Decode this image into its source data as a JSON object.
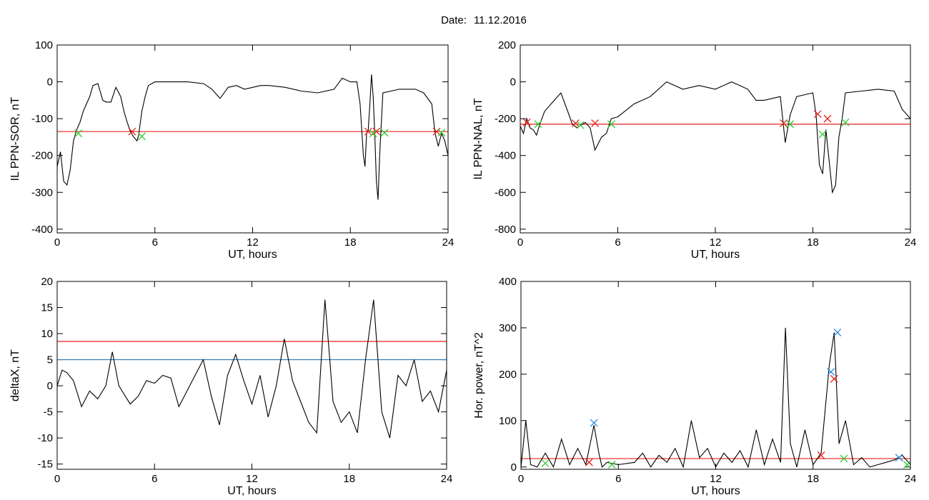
{
  "title_prefix": "Date:",
  "date": "11.12.2016",
  "colors": {
    "trace": "#000000",
    "highlight": "#1f5fc0",
    "threshold_red": "#e8201a",
    "threshold_blue": "#2a73b8",
    "marker_red": "#e8201a",
    "marker_green": "#33cc33",
    "marker_blue": "#2a8ae0"
  },
  "chart_data": [
    {
      "type": "line",
      "id": "ppn-sor",
      "xlabel": "UT, hours",
      "ylabel": "IL PPN-SOR, nT",
      "xlim": [
        0,
        24
      ],
      "ylim": [
        -410,
        100
      ],
      "xticks": [
        0,
        6,
        12,
        18,
        24
      ],
      "yticks": [
        -400,
        -300,
        -200,
        -100,
        0,
        100
      ],
      "threshold": {
        "value": -135,
        "color": "red"
      },
      "series": [
        {
          "x": [
            0,
            0.2,
            0.4,
            0.6,
            0.8,
            1.0,
            1.2,
            1.4,
            1.6,
            1.8,
            2.0,
            2.2,
            2.5,
            2.8,
            3.0,
            3.3,
            3.6,
            3.9,
            4.1,
            4.3,
            4.5,
            4.7,
            4.9,
            5.0,
            5.2,
            5.4,
            5.6,
            6.0,
            7,
            8,
            9,
            9.5,
            10,
            10.5,
            11,
            11.5,
            12,
            12.5,
            13,
            14,
            15,
            16,
            17,
            17.5,
            18,
            18.4,
            18.6,
            18.8,
            18.9,
            19.0,
            19.1,
            19.2,
            19.3,
            19.4,
            19.5,
            19.6,
            19.7,
            19.8,
            20.0,
            20.5,
            21,
            22,
            22.5,
            23.0,
            23.2,
            23.4,
            23.6,
            23.8,
            24
          ],
          "y": [
            -230,
            -190,
            -270,
            -280,
            -240,
            -160,
            -130,
            -110,
            -80,
            -60,
            -40,
            -10,
            -5,
            -50,
            -55,
            -55,
            -15,
            -40,
            -80,
            -110,
            -135,
            -150,
            -160,
            -145,
            -80,
            -40,
            -10,
            0,
            0,
            0,
            -5,
            -20,
            -45,
            -15,
            -10,
            -20,
            -15,
            -10,
            -10,
            -15,
            -25,
            -30,
            -20,
            10,
            0,
            0,
            -60,
            -200,
            -230,
            -140,
            -130,
            -60,
            20,
            -40,
            -140,
            -270,
            -320,
            -200,
            -30,
            -25,
            -20,
            -20,
            -30,
            -60,
            -140,
            -175,
            -140,
            -160,
            -200
          ]
        }
      ],
      "markers": [
        {
          "x": 4.6,
          "y": -135,
          "color": "red"
        },
        {
          "x": 19.1,
          "y": -135,
          "color": "red"
        },
        {
          "x": 19.6,
          "y": -135,
          "color": "red"
        },
        {
          "x": 23.3,
          "y": -135,
          "color": "red"
        },
        {
          "x": 1.3,
          "y": -140,
          "color": "green"
        },
        {
          "x": 5.2,
          "y": -148,
          "color": "green"
        },
        {
          "x": 19.4,
          "y": -140,
          "color": "green"
        },
        {
          "x": 20.1,
          "y": -138,
          "color": "green"
        },
        {
          "x": 23.6,
          "y": -138,
          "color": "green"
        }
      ]
    },
    {
      "type": "line",
      "id": "ppn-nal",
      "xlabel": "UT, hours",
      "ylabel": "IL PPN-NAL, nT",
      "xlim": [
        0,
        24
      ],
      "ylim": [
        -820,
        200
      ],
      "xticks": [
        0,
        6,
        12,
        18,
        24
      ],
      "yticks": [
        -800,
        -600,
        -400,
        -200,
        0,
        200
      ],
      "threshold": {
        "value": -230,
        "color": "red"
      },
      "series": [
        {
          "x": [
            0,
            0.2,
            0.4,
            0.6,
            0.8,
            1.0,
            1.2,
            1.5,
            2,
            2.5,
            3.0,
            3.2,
            3.5,
            4,
            4.3,
            4.6,
            5.0,
            5.3,
            5.6,
            6,
            7,
            8,
            9,
            10,
            11,
            12,
            13,
            14,
            14.5,
            15,
            16,
            16.3,
            16.6,
            17,
            17.5,
            18.0,
            18.2,
            18.4,
            18.6,
            18.8,
            19.0,
            19.2,
            19.4,
            19.6,
            19.8,
            20,
            21,
            22,
            23,
            23.5,
            24
          ],
          "y": [
            -240,
            -280,
            -200,
            -250,
            -260,
            -290,
            -230,
            -160,
            -110,
            -60,
            -180,
            -230,
            -250,
            -220,
            -250,
            -370,
            -300,
            -280,
            -200,
            -190,
            -120,
            -80,
            0,
            -40,
            -20,
            -40,
            0,
            -40,
            -100,
            -100,
            -80,
            -330,
            -180,
            -80,
            -70,
            -60,
            -180,
            -450,
            -500,
            -260,
            -430,
            -600,
            -560,
            -300,
            -200,
            -60,
            -50,
            -40,
            -50,
            -150,
            -200
          ]
        }
      ],
      "markers": [
        {
          "x": 0.4,
          "y": -220,
          "color": "red"
        },
        {
          "x": 3.4,
          "y": -225,
          "color": "red"
        },
        {
          "x": 4.6,
          "y": -225,
          "color": "red"
        },
        {
          "x": 16.2,
          "y": -225,
          "color": "red"
        },
        {
          "x": 18.3,
          "y": -175,
          "color": "red"
        },
        {
          "x": 18.9,
          "y": -200,
          "color": "red"
        },
        {
          "x": 1.1,
          "y": -230,
          "color": "green"
        },
        {
          "x": 3.7,
          "y": -235,
          "color": "green"
        },
        {
          "x": 5.6,
          "y": -230,
          "color": "green"
        },
        {
          "x": 16.6,
          "y": -230,
          "color": "green"
        },
        {
          "x": 18.6,
          "y": -285,
          "color": "green"
        },
        {
          "x": 20.0,
          "y": -220,
          "color": "green"
        }
      ]
    },
    {
      "type": "line",
      "id": "deltax",
      "xlabel": "UT, hours",
      "ylabel": "deltaX, nT",
      "xlim": [
        0,
        24
      ],
      "ylim": [
        -16,
        20
      ],
      "xticks": [
        0,
        6,
        12,
        18,
        24
      ],
      "yticks": [
        -15,
        -10,
        -5,
        0,
        5,
        10,
        15,
        20
      ],
      "thresholds": [
        {
          "value": 8.5,
          "color": "red"
        },
        {
          "value": 5.0,
          "color": "blue"
        }
      ],
      "series": [
        {
          "x": [
            0,
            0.3,
            0.6,
            1.0,
            1.5,
            2,
            2.5,
            3,
            3.4,
            3.8,
            4.5,
            5,
            5.5,
            6,
            6.5,
            7,
            7.5,
            8,
            8.5,
            9,
            9.5,
            10,
            10.5,
            11,
            11.5,
            12,
            12.5,
            13,
            13.5,
            14,
            14.5,
            15,
            15.5,
            16,
            16.5,
            16.8,
            17,
            17.5,
            18,
            18.5,
            19,
            19.5,
            20,
            20.5,
            21,
            21.5,
            22,
            22.5,
            23,
            23.5,
            24
          ],
          "y": [
            0,
            3,
            2.5,
            1,
            -4,
            -1,
            -2.5,
            0,
            6.5,
            0,
            -3.5,
            -2,
            1,
            0.5,
            2,
            1.5,
            -4,
            -1,
            2,
            5,
            -2,
            -7.5,
            2,
            6,
            1,
            -3.5,
            2,
            -6,
            0,
            9,
            1,
            -3,
            -7,
            -9,
            16.5,
            5,
            -3,
            -7,
            -5,
            -9,
            5,
            16.5,
            -5,
            -10,
            2,
            0,
            5,
            -3,
            -1,
            -5,
            3
          ]
        }
      ],
      "markers": []
    },
    {
      "type": "line",
      "id": "hor-power",
      "xlabel": "UT, hours",
      "ylabel": "Hor. power, nT^2",
      "xlim": [
        0,
        24
      ],
      "ylim": [
        -5,
        400
      ],
      "xticks": [
        0,
        6,
        12,
        18,
        24
      ],
      "yticks": [
        0,
        100,
        200,
        300,
        400
      ],
      "threshold": {
        "value": 18,
        "color": "red"
      },
      "series": [
        {
          "x": [
            0,
            0.3,
            0.6,
            1,
            1.5,
            2,
            2.5,
            3,
            3.5,
            4,
            4.5,
            4.8,
            5.0,
            5.3,
            6,
            7,
            7.5,
            8,
            8.5,
            9,
            9.5,
            10,
            10.5,
            11,
            11.5,
            12,
            12.5,
            13,
            13.5,
            14,
            14.5,
            15,
            15.5,
            16,
            16.3,
            16.6,
            17,
            17.5,
            18,
            18.5,
            19.0,
            19.3,
            19.6,
            20,
            20.5,
            21,
            21.5,
            22,
            22.5,
            23,
            23.5,
            24
          ],
          "y": [
            0,
            100,
            5,
            0,
            30,
            0,
            60,
            5,
            40,
            5,
            90,
            30,
            0,
            10,
            5,
            10,
            30,
            0,
            25,
            10,
            40,
            0,
            100,
            20,
            40,
            0,
            30,
            10,
            35,
            0,
            80,
            5,
            60,
            10,
            300,
            50,
            0,
            80,
            5,
            30,
            220,
            290,
            50,
            100,
            5,
            20,
            0,
            5,
            10,
            15,
            25,
            5
          ]
        }
      ],
      "markers": [
        {
          "x": 4.2,
          "y": 10,
          "color": "red"
        },
        {
          "x": 18.5,
          "y": 25,
          "color": "red"
        },
        {
          "x": 19.3,
          "y": 190,
          "color": "red"
        },
        {
          "x": 1.5,
          "y": 8,
          "color": "green"
        },
        {
          "x": 5.6,
          "y": 5,
          "color": "green"
        },
        {
          "x": 19.9,
          "y": 18,
          "color": "green"
        },
        {
          "x": 23.8,
          "y": 5,
          "color": "green"
        },
        {
          "x": 4.5,
          "y": 95,
          "color": "blue"
        },
        {
          "x": 19.1,
          "y": 205,
          "color": "blue"
        },
        {
          "x": 19.5,
          "y": 290,
          "color": "blue"
        },
        {
          "x": 23.3,
          "y": 20,
          "color": "blue"
        }
      ]
    }
  ]
}
